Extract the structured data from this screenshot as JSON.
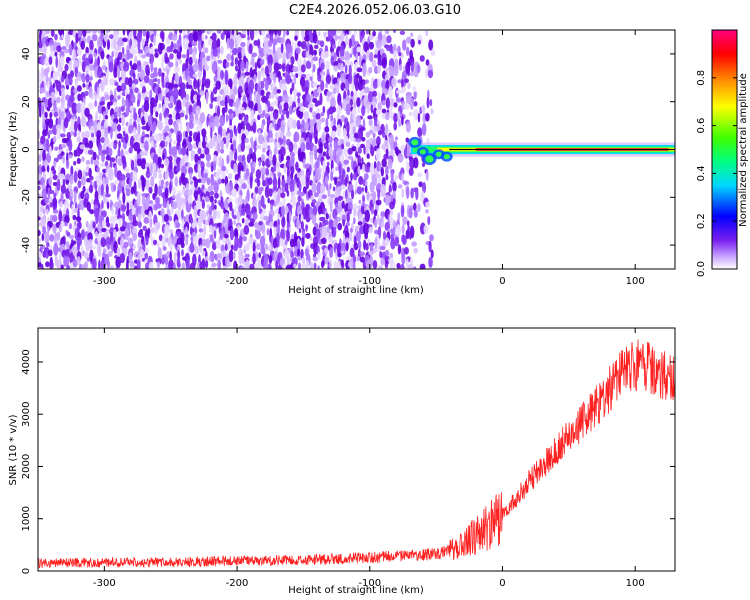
{
  "title": "C2E4.2026.052.06.03.G10",
  "chart_data": [
    {
      "type": "heatmap",
      "xlabel": "Height of straight line (km)",
      "ylabel": "Frequency (Hz)",
      "xlim": [
        -350,
        130
      ],
      "ylim": [
        -50,
        50
      ],
      "x_ticks": [
        -300,
        -200,
        -100,
        0,
        100
      ],
      "x_tick_labels": [
        "-300",
        "-200",
        "-100",
        "0",
        "100"
      ],
      "y_ticks": [
        -40,
        -20,
        0,
        20,
        40
      ],
      "y_tick_labels": [
        "-40",
        "-20",
        "0",
        "20",
        "40"
      ],
      "colorbar": {
        "label": "Normalized spectral amplitude",
        "range": [
          0,
          1
        ],
        "ticks": [
          0.0,
          0.2,
          0.4,
          0.6,
          0.8
        ],
        "tick_labels": [
          "0.0",
          "0.2",
          "0.4",
          "0.6",
          "0.8"
        ],
        "colormap": [
          "#ffffff",
          "#c9a8ff",
          "#7a1ff0",
          "#0000ff",
          "#00d8ff",
          "#00ff80",
          "#40ff00",
          "#ffff00",
          "#ff8000",
          "#ff0000",
          "#ff0080"
        ]
      },
      "noise_region_x": [
        -350,
        -53
      ],
      "signal_x": [
        -72,
        130
      ],
      "signal_frequency": 0
    },
    {
      "type": "line",
      "xlabel": "Height of straight line (km)",
      "ylabel": "SNR (10 * v/v)",
      "xlim": [
        -350,
        130
      ],
      "ylim": [
        0,
        4650
      ],
      "x_ticks": [
        -300,
        -200,
        -100,
        0,
        100
      ],
      "x_tick_labels": [
        "-300",
        "-200",
        "-100",
        "0",
        "100"
      ],
      "y_ticks": [
        0,
        1000,
        2000,
        3000,
        4000
      ],
      "y_tick_labels": [
        "0",
        "1000",
        "2000",
        "3000",
        "4000"
      ],
      "color": "#ff2020",
      "trend_x": [
        -350,
        -250,
        -150,
        -80,
        -50,
        -35,
        -25,
        -10,
        0,
        20,
        40,
        60,
        80,
        90,
        100,
        110,
        120,
        130
      ],
      "trend_y": [
        150,
        170,
        210,
        280,
        330,
        420,
        600,
        850,
        1050,
        1700,
        2300,
        2850,
        3450,
        3800,
        3950,
        3900,
        3750,
        3650
      ]
    }
  ]
}
